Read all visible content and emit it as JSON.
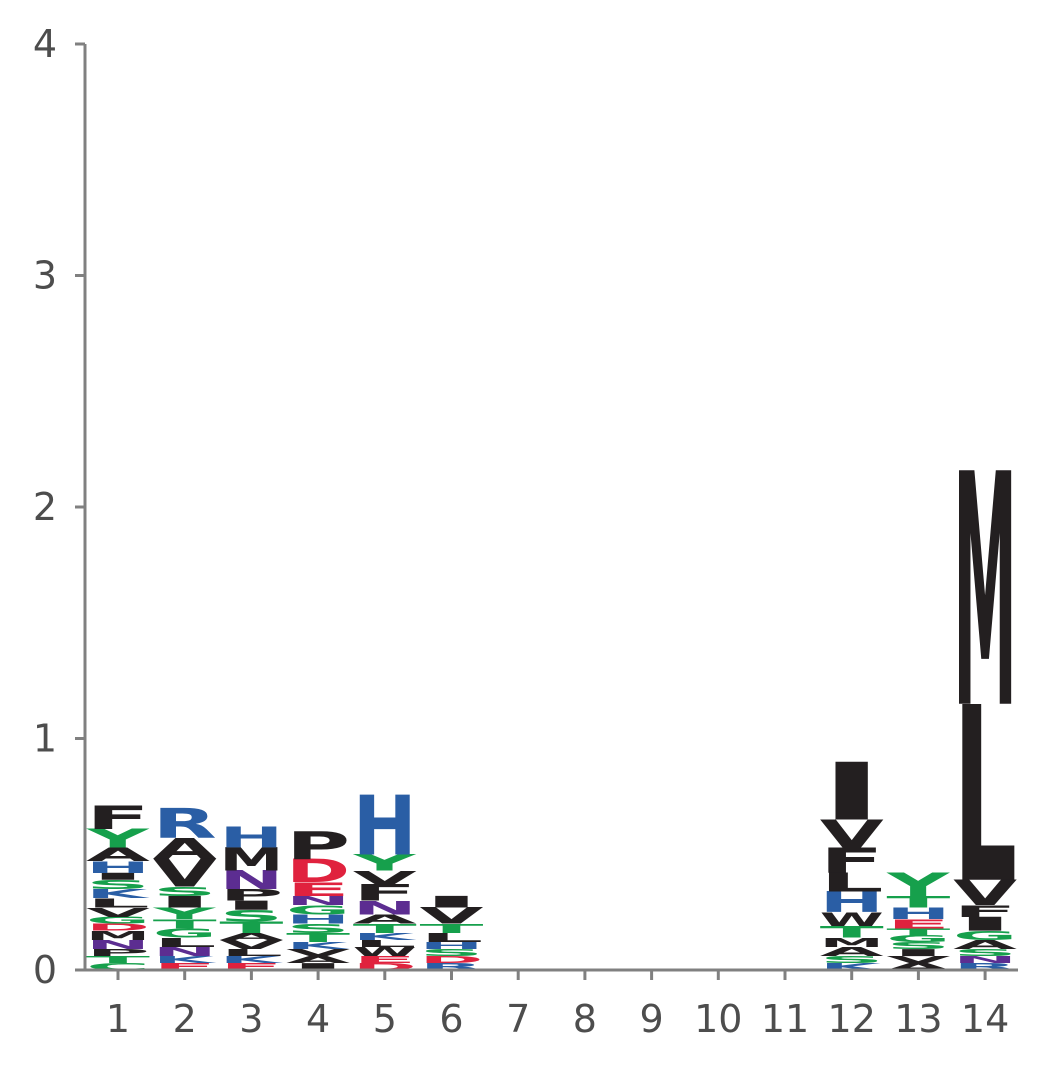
{
  "chart_data": {
    "type": "sequence-logo",
    "xlabel": "",
    "ylabel": "",
    "ylim": [
      0,
      4
    ],
    "y_ticks": [
      "0",
      "1",
      "2",
      "3",
      "4"
    ],
    "positions": [
      "1",
      "2",
      "3",
      "4",
      "5",
      "6",
      "7",
      "8",
      "9",
      "10",
      "11",
      "12",
      "13",
      "14"
    ],
    "colors": {
      "hydrophobic": "#231f20",
      "polar": "#16a04c",
      "basic": "#2a5ea5",
      "acidic": "#e0223e",
      "amide": "#5c2d91"
    },
    "residue_classes": {
      "A": "hydrophobic",
      "F": "hydrophobic",
      "I": "hydrophobic",
      "L": "hydrophobic",
      "M": "hydrophobic",
      "P": "hydrophobic",
      "V": "hydrophobic",
      "W": "hydrophobic",
      "G": "polar",
      "S": "polar",
      "T": "polar",
      "Y": "polar",
      "C": "polar",
      "H": "basic",
      "K": "basic",
      "R": "basic",
      "D": "acidic",
      "E": "acidic",
      "N": "amide",
      "Q": "amide"
    },
    "stacks": [
      {
        "pos": "1",
        "letters": [
          {
            "aa": "C",
            "bits": 0.03
          },
          {
            "aa": "T",
            "bits": 0.03
          },
          {
            "aa": "P",
            "bits": 0.03
          },
          {
            "aa": "N",
            "bits": 0.04
          },
          {
            "aa": "M",
            "bits": 0.04
          },
          {
            "aa": "D",
            "bits": 0.03
          },
          {
            "aa": "G",
            "bits": 0.03
          },
          {
            "aa": "V",
            "bits": 0.04
          },
          {
            "aa": "L",
            "bits": 0.04
          },
          {
            "aa": "K",
            "bits": 0.04
          },
          {
            "aa": "S",
            "bits": 0.04
          },
          {
            "aa": "I",
            "bits": 0.03
          },
          {
            "aa": "H",
            "bits": 0.05
          },
          {
            "aa": "A",
            "bits": 0.06
          },
          {
            "aa": "Y",
            "bits": 0.08
          },
          {
            "aa": "F",
            "bits": 0.1
          }
        ]
      },
      {
        "pos": "2",
        "letters": [
          {
            "aa": "E",
            "bits": 0.03
          },
          {
            "aa": "K",
            "bits": 0.03
          },
          {
            "aa": "N",
            "bits": 0.04
          },
          {
            "aa": "L",
            "bits": 0.04
          },
          {
            "aa": "G",
            "bits": 0.04
          },
          {
            "aa": "T",
            "bits": 0.04
          },
          {
            "aa": "Y",
            "bits": 0.05
          },
          {
            "aa": "I",
            "bits": 0.05
          },
          {
            "aa": "S",
            "bits": 0.04
          },
          {
            "aa": "V",
            "bits": 0.12
          },
          {
            "aa": "A",
            "bits": 0.09
          },
          {
            "aa": "R",
            "bits": 0.13
          }
        ]
      },
      {
        "pos": "3",
        "letters": [
          {
            "aa": "E",
            "bits": 0.03
          },
          {
            "aa": "K",
            "bits": 0.03
          },
          {
            "aa": "L",
            "bits": 0.03
          },
          {
            "aa": "V",
            "bits": 0.04
          },
          {
            "aa": "A",
            "bits": 0.03
          },
          {
            "aa": "T",
            "bits": 0.05
          },
          {
            "aa": "S",
            "bits": 0.05
          },
          {
            "aa": "I",
            "bits": 0.04
          },
          {
            "aa": "P",
            "bits": 0.05
          },
          {
            "aa": "N",
            "bits": 0.08
          },
          {
            "aa": "M",
            "bits": 0.1
          },
          {
            "aa": "H",
            "bits": 0.09
          }
        ]
      },
      {
        "pos": "4",
        "letters": [
          {
            "aa": "I",
            "bits": 0.03
          },
          {
            "aa": "A",
            "bits": 0.03
          },
          {
            "aa": "V",
            "bits": 0.03
          },
          {
            "aa": "K",
            "bits": 0.03
          },
          {
            "aa": "T",
            "bits": 0.04
          },
          {
            "aa": "S",
            "bits": 0.04
          },
          {
            "aa": "H",
            "bits": 0.04
          },
          {
            "aa": "G",
            "bits": 0.04
          },
          {
            "aa": "N",
            "bits": 0.04
          },
          {
            "aa": "E",
            "bits": 0.06
          },
          {
            "aa": "D",
            "bits": 0.1
          },
          {
            "aa": "P",
            "bits": 0.12
          }
        ]
      },
      {
        "pos": "5",
        "letters": [
          {
            "aa": "D",
            "bits": 0.03
          },
          {
            "aa": "E",
            "bits": 0.03
          },
          {
            "aa": "W",
            "bits": 0.04
          },
          {
            "aa": "L",
            "bits": 0.03
          },
          {
            "aa": "K",
            "bits": 0.03
          },
          {
            "aa": "T",
            "bits": 0.04
          },
          {
            "aa": "A",
            "bits": 0.04
          },
          {
            "aa": "N",
            "bits": 0.06
          },
          {
            "aa": "F",
            "bits": 0.07
          },
          {
            "aa": "V",
            "bits": 0.06
          },
          {
            "aa": "Y",
            "bits": 0.07
          },
          {
            "aa": "H",
            "bits": 0.26
          }
        ]
      },
      {
        "pos": "6",
        "letters": [
          {
            "aa": "R",
            "bits": 0.03
          },
          {
            "aa": "D",
            "bits": 0.03
          },
          {
            "aa": "S",
            "bits": 0.03
          },
          {
            "aa": "H",
            "bits": 0.03
          },
          {
            "aa": "L",
            "bits": 0.04
          },
          {
            "aa": "T",
            "bits": 0.04
          },
          {
            "aa": "V",
            "bits": 0.07
          },
          {
            "aa": "I",
            "bits": 0.05
          }
        ]
      },
      {
        "pos": "7",
        "letters": []
      },
      {
        "pos": "8",
        "letters": []
      },
      {
        "pos": "9",
        "letters": []
      },
      {
        "pos": "10",
        "letters": []
      },
      {
        "pos": "11",
        "letters": []
      },
      {
        "pos": "12",
        "letters": [
          {
            "aa": "K",
            "bits": 0.03
          },
          {
            "aa": "S",
            "bits": 0.03
          },
          {
            "aa": "A",
            "bits": 0.04
          },
          {
            "aa": "M",
            "bits": 0.04
          },
          {
            "aa": "T",
            "bits": 0.05
          },
          {
            "aa": "W",
            "bits": 0.06
          },
          {
            "aa": "H",
            "bits": 0.09
          },
          {
            "aa": "L",
            "bits": 0.08
          },
          {
            "aa": "F",
            "bits": 0.11
          },
          {
            "aa": "V",
            "bits": 0.12
          },
          {
            "aa": "I",
            "bits": 0.25
          }
        ]
      },
      {
        "pos": "13",
        "letters": [
          {
            "aa": "A",
            "bits": 0.03
          },
          {
            "aa": "V",
            "bits": 0.03
          },
          {
            "aa": "I",
            "bits": 0.03
          },
          {
            "aa": "S",
            "bits": 0.03
          },
          {
            "aa": "G",
            "bits": 0.03
          },
          {
            "aa": "T",
            "bits": 0.03
          },
          {
            "aa": "E",
            "bits": 0.04
          },
          {
            "aa": "H",
            "bits": 0.05
          },
          {
            "aa": "T",
            "bits": 0.05
          },
          {
            "aa": "Y",
            "bits": 0.1
          }
        ]
      },
      {
        "pos": "14",
        "letters": [
          {
            "aa": "R",
            "bits": 0.03
          },
          {
            "aa": "N",
            "bits": 0.03
          },
          {
            "aa": "S",
            "bits": 0.03
          },
          {
            "aa": "A",
            "bits": 0.04
          },
          {
            "aa": "G",
            "bits": 0.04
          },
          {
            "aa": "I",
            "bits": 0.06
          },
          {
            "aa": "F",
            "bits": 0.05
          },
          {
            "aa": "V",
            "bits": 0.11
          },
          {
            "aa": "L",
            "bits": 0.76
          },
          {
            "aa": "M",
            "bits": 1.01
          }
        ]
      }
    ]
  }
}
